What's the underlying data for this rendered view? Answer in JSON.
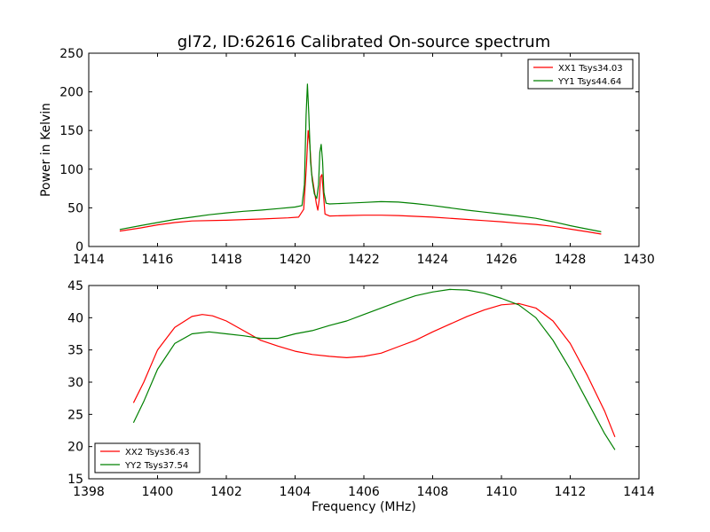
{
  "figure": {
    "title": "gl72, ID:62616 Calibrated On-source spectrum",
    "xlabel": "Frequency (MHz)"
  },
  "chart_data": [
    {
      "type": "line",
      "title": "gl72, ID:62616 Calibrated On-source spectrum",
      "xlabel": "",
      "ylabel": "Power in Kelvin",
      "xlim": [
        1414,
        1430
      ],
      "ylim": [
        0,
        250
      ],
      "xticks": [
        1414,
        1416,
        1418,
        1420,
        1422,
        1424,
        1426,
        1428,
        1430
      ],
      "yticks": [
        0,
        50,
        100,
        150,
        200,
        250
      ],
      "legend": "top-right",
      "series": [
        {
          "name": "XX1 Tsys34.03",
          "color": "#ff0000",
          "points": [
            [
              1414.9,
              20
            ],
            [
              1415.5,
              24
            ],
            [
              1416,
              28
            ],
            [
              1416.5,
              31
            ],
            [
              1417,
              33
            ],
            [
              1418,
              34
            ],
            [
              1419,
              35.5
            ],
            [
              1419.8,
              37
            ],
            [
              1420.1,
              38
            ],
            [
              1420.25,
              48
            ],
            [
              1420.33,
              105
            ],
            [
              1420.38,
              150
            ],
            [
              1420.43,
              130
            ],
            [
              1420.48,
              95
            ],
            [
              1420.55,
              75
            ],
            [
              1420.62,
              55
            ],
            [
              1420.66,
              47
            ],
            [
              1420.7,
              60
            ],
            [
              1420.74,
              90
            ],
            [
              1420.78,
              93
            ],
            [
              1420.82,
              70
            ],
            [
              1420.87,
              42
            ],
            [
              1421,
              39.5
            ],
            [
              1421.5,
              40
            ],
            [
              1422,
              40.5
            ],
            [
              1422.5,
              40.5
            ],
            [
              1423,
              40
            ],
            [
              1423.5,
              39
            ],
            [
              1424,
              38
            ],
            [
              1424.5,
              36.5
            ],
            [
              1425,
              35
            ],
            [
              1425.5,
              33.5
            ],
            [
              1426,
              32
            ],
            [
              1426.5,
              30
            ],
            [
              1427,
              28.5
            ],
            [
              1427.5,
              26
            ],
            [
              1428,
              22.5
            ],
            [
              1428.5,
              19
            ],
            [
              1428.9,
              16
            ]
          ]
        },
        {
          "name": "YY1 Tsys44.64",
          "color": "#008000",
          "points": [
            [
              1414.9,
              22
            ],
            [
              1415.5,
              27
            ],
            [
              1416,
              31
            ],
            [
              1416.5,
              35
            ],
            [
              1417,
              38
            ],
            [
              1417.5,
              41
            ],
            [
              1418,
              43.5
            ],
            [
              1418.5,
              45.5
            ],
            [
              1419,
              47
            ],
            [
              1419.5,
              49
            ],
            [
              1420,
              51
            ],
            [
              1420.2,
              53
            ],
            [
              1420.27,
              80
            ],
            [
              1420.32,
              170
            ],
            [
              1420.36,
              210
            ],
            [
              1420.4,
              170
            ],
            [
              1420.45,
              110
            ],
            [
              1420.5,
              85
            ],
            [
              1420.56,
              68
            ],
            [
              1420.63,
              62
            ],
            [
              1420.68,
              80
            ],
            [
              1420.72,
              122
            ],
            [
              1420.76,
              132
            ],
            [
              1420.8,
              110
            ],
            [
              1420.84,
              70
            ],
            [
              1420.9,
              56
            ],
            [
              1421,
              55
            ],
            [
              1421.5,
              56
            ],
            [
              1422,
              57
            ],
            [
              1422.5,
              58
            ],
            [
              1423,
              57.5
            ],
            [
              1423.5,
              55.5
            ],
            [
              1424,
              53
            ],
            [
              1424.5,
              50
            ],
            [
              1425,
              47
            ],
            [
              1425.5,
              44.5
            ],
            [
              1426,
              42
            ],
            [
              1426.5,
              39.5
            ],
            [
              1427,
              36.5
            ],
            [
              1427.5,
              32
            ],
            [
              1428,
              27
            ],
            [
              1428.5,
              22.5
            ],
            [
              1428.9,
              19
            ]
          ]
        }
      ]
    },
    {
      "type": "line",
      "title": "",
      "xlabel": "Frequency (MHz)",
      "ylabel": "",
      "xlim": [
        1398,
        1414
      ],
      "ylim": [
        15,
        45
      ],
      "xticks": [
        1398,
        1400,
        1402,
        1404,
        1406,
        1408,
        1410,
        1412,
        1414
      ],
      "yticks": [
        15,
        20,
        25,
        30,
        35,
        40,
        45
      ],
      "legend": "bottom-left",
      "series": [
        {
          "name": "XX2 Tsys36.43",
          "color": "#ff0000",
          "points": [
            [
              1399.3,
              26.8
            ],
            [
              1399.6,
              30
            ],
            [
              1400,
              35
            ],
            [
              1400.5,
              38.5
            ],
            [
              1401,
              40.2
            ],
            [
              1401.3,
              40.5
            ],
            [
              1401.6,
              40.3
            ],
            [
              1402,
              39.5
            ],
            [
              1402.5,
              38
            ],
            [
              1403,
              36.5
            ],
            [
              1403.5,
              35.6
            ],
            [
              1404,
              34.8
            ],
            [
              1404.5,
              34.3
            ],
            [
              1405,
              34
            ],
            [
              1405.5,
              33.8
            ],
            [
              1406,
              34
            ],
            [
              1406.5,
              34.5
            ],
            [
              1407,
              35.5
            ],
            [
              1407.5,
              36.5
            ],
            [
              1408,
              37.8
            ],
            [
              1408.5,
              39
            ],
            [
              1409,
              40.2
            ],
            [
              1409.5,
              41.2
            ],
            [
              1410,
              42
            ],
            [
              1410.5,
              42.2
            ],
            [
              1411,
              41.5
            ],
            [
              1411.5,
              39.5
            ],
            [
              1412,
              36
            ],
            [
              1412.5,
              31
            ],
            [
              1413,
              25.5
            ],
            [
              1413.3,
              21.5
            ]
          ]
        },
        {
          "name": "YY2 Tsys37.54",
          "color": "#008000",
          "points": [
            [
              1399.3,
              23.7
            ],
            [
              1399.6,
              27
            ],
            [
              1400,
              32
            ],
            [
              1400.5,
              36
            ],
            [
              1401,
              37.5
            ],
            [
              1401.5,
              37.8
            ],
            [
              1402,
              37.5
            ],
            [
              1402.5,
              37.2
            ],
            [
              1403,
              36.8
            ],
            [
              1403.5,
              36.8
            ],
            [
              1404,
              37.5
            ],
            [
              1404.5,
              38
            ],
            [
              1405,
              38.8
            ],
            [
              1405.5,
              39.5
            ],
            [
              1406,
              40.5
            ],
            [
              1406.5,
              41.5
            ],
            [
              1407,
              42.5
            ],
            [
              1407.5,
              43.4
            ],
            [
              1408,
              44
            ],
            [
              1408.5,
              44.4
            ],
            [
              1409,
              44.3
            ],
            [
              1409.5,
              43.8
            ],
            [
              1410,
              43
            ],
            [
              1410.5,
              42
            ],
            [
              1411,
              40
            ],
            [
              1411.5,
              36.5
            ],
            [
              1412,
              32
            ],
            [
              1412.5,
              27
            ],
            [
              1413,
              22
            ],
            [
              1413.3,
              19.5
            ]
          ]
        }
      ]
    }
  ]
}
